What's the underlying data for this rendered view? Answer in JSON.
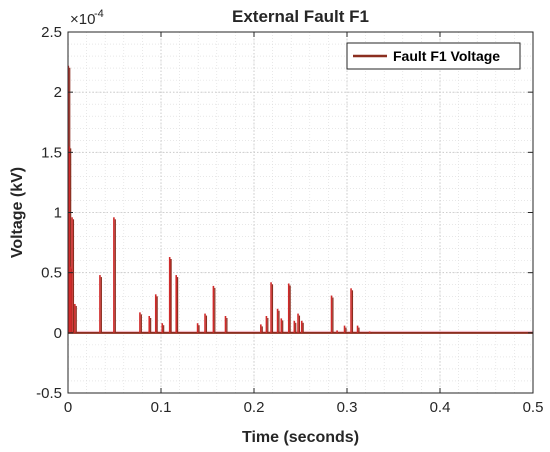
{
  "chart_data": {
    "type": "line",
    "title": "External Fault F1",
    "xlabel": "Time (seconds)",
    "ylabel": "Voltage (kV)",
    "y_exponent_label": "×10",
    "y_exponent_power": "-4",
    "xlim": [
      0,
      0.5
    ],
    "ylim": [
      -0.5,
      2.5
    ],
    "x_ticks": [
      0,
      0.1,
      0.2,
      0.3,
      0.4,
      0.5
    ],
    "x_tick_labels": [
      "0",
      "0.1",
      "0.2",
      "0.3",
      "0.4",
      "0.5"
    ],
    "y_ticks": [
      -0.5,
      0,
      0.5,
      1,
      1.5,
      2,
      2.5
    ],
    "y_tick_labels": [
      "-0.5",
      "0",
      "0.5",
      "1",
      "1.5",
      "2",
      "2.5"
    ],
    "grid": "major and minor, dotted",
    "legend_position": "top-right",
    "series": [
      {
        "name": "Fault F1 Voltage",
        "color": "#8B2E1F",
        "spike_color": "#D12A2A",
        "baseline": 0.0,
        "spikes": [
          {
            "t": 0.001,
            "v": 2.22
          },
          {
            "t": 0.002,
            "v": 1.55
          },
          {
            "t": 0.003,
            "v": 0.55
          },
          {
            "t": 0.005,
            "v": 0.96
          },
          {
            "t": 0.008,
            "v": 0.24
          },
          {
            "t": 0.035,
            "v": 0.48
          },
          {
            "t": 0.05,
            "v": 0.96
          },
          {
            "t": 0.078,
            "v": 0.17
          },
          {
            "t": 0.088,
            "v": 0.14
          },
          {
            "t": 0.095,
            "v": 0.32
          },
          {
            "t": 0.102,
            "v": 0.08
          },
          {
            "t": 0.11,
            "v": 0.63
          },
          {
            "t": 0.117,
            "v": 0.48
          },
          {
            "t": 0.14,
            "v": 0.08
          },
          {
            "t": 0.148,
            "v": 0.16
          },
          {
            "t": 0.157,
            "v": 0.39
          },
          {
            "t": 0.17,
            "v": 0.14
          },
          {
            "t": 0.208,
            "v": 0.07
          },
          {
            "t": 0.214,
            "v": 0.14
          },
          {
            "t": 0.219,
            "v": 0.42
          },
          {
            "t": 0.226,
            "v": 0.2
          },
          {
            "t": 0.23,
            "v": 0.12
          },
          {
            "t": 0.238,
            "v": 0.41
          },
          {
            "t": 0.244,
            "v": 0.1
          },
          {
            "t": 0.248,
            "v": 0.16
          },
          {
            "t": 0.252,
            "v": 0.1
          },
          {
            "t": 0.284,
            "v": 0.31
          },
          {
            "t": 0.29,
            "v": 0.02
          },
          {
            "t": 0.298,
            "v": 0.06
          },
          {
            "t": 0.305,
            "v": 0.37
          },
          {
            "t": 0.312,
            "v": 0.06
          },
          {
            "t": 0.325,
            "v": 0.01
          }
        ]
      }
    ]
  }
}
